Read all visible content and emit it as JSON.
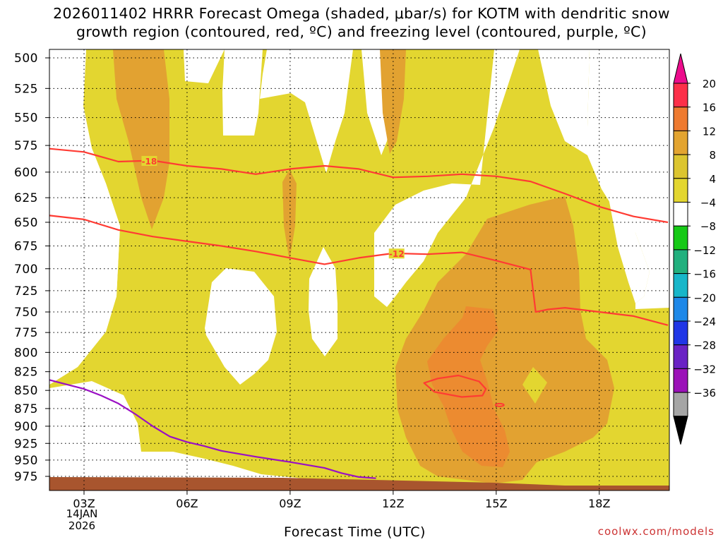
{
  "title": {
    "line1": "2026011402 HRRR Forecast Omega (shaded, μbar/s) for KOTM with dendritic snow",
    "line2": "growth region (contoured, red, ºC) and freezing level (contoured, purple, ºC)"
  },
  "credit": "coolwx.com/models",
  "colors": {
    "yellow": "#e3d630",
    "orange_light": "#e2a231",
    "orange_mid": "#ec8b30",
    "ground": "#a8552e",
    "red_contour": "#ff3b33",
    "purple_contour": "#9a0fc4"
  },
  "chart_data": {
    "type": "heatmap",
    "title": "2026011402 HRRR Forecast Omega (shaded, μbar/s) for KOTM with dendritic snow growth region (contoured, red, ºC) and freezing level (contoured, purple, ºC)",
    "xlabel": "Forecast Time (UTC)",
    "ylabel": "",
    "x_ticks": [
      "03Z",
      "06Z",
      "09Z",
      "12Z",
      "15Z",
      "18Z"
    ],
    "x_tick_hours": [
      3,
      6,
      9,
      12,
      15,
      18
    ],
    "date_label": [
      "14JAN",
      "2026"
    ],
    "xlim_hours": [
      2,
      20
    ],
    "y_ticks": [
      500,
      525,
      550,
      575,
      600,
      625,
      650,
      675,
      700,
      725,
      750,
      775,
      800,
      825,
      850,
      875,
      900,
      925,
      950,
      975
    ],
    "ylim_hpa": [
      500,
      975
    ],
    "y_log_scale": true,
    "grid": true,
    "colorbar": {
      "labels": [
        "20",
        "16",
        "12",
        "8",
        "4",
        "−4",
        "−8",
        "−12",
        "−16",
        "−20",
        "−24",
        "−28",
        "−32",
        "−36"
      ],
      "bins": [
        {
          "range": "16 to 20",
          "color": "#fc2f49"
        },
        {
          "range": "12 to 16",
          "color": "#ee7a30"
        },
        {
          "range": "8 to 12",
          "color": "#e3a430"
        },
        {
          "range": "4 to 8",
          "color": "#dcc530"
        },
        {
          "range": "0 to 4",
          "color": "#e3d630"
        },
        {
          "range": "-4 to 4",
          "color": "#ffffff"
        },
        {
          "range": "-8 to -4",
          "color": "#16c916"
        },
        {
          "range": "-12 to -8",
          "color": "#22b07e"
        },
        {
          "range": "-16 to -12",
          "color": "#18b6c9"
        },
        {
          "range": "-20 to -16",
          "color": "#1e88e8"
        },
        {
          "range": "-24 to -20",
          "color": "#2036e6"
        },
        {
          "range": "-28 to -24",
          "color": "#6a22c4"
        },
        {
          "range": "-32 to -28",
          "color": "#9b12b8"
        },
        {
          "range": "-36 to -32",
          "color": "#a5a5a5"
        }
      ],
      "top_extension_color": "#ec0c8c",
      "bottom_extension_color": "#000000"
    },
    "contour_labels": [
      "-18",
      "-12"
    ],
    "series": [
      {
        "name": "-18",
        "color": "#ff3b33",
        "x_hours": [
          2.0,
          3.0,
          4.0,
          5.0,
          6.0,
          7.0,
          8.0,
          9.0,
          10.0,
          11.0,
          12.0,
          13.0,
          14.0,
          15.0,
          16.0,
          17.0,
          18.0,
          19.0,
          20.0
        ],
        "y_hpa": [
          578,
          581,
          590,
          589,
          594,
          597,
          602,
          597,
          594,
          597,
          605,
          604,
          602,
          604,
          609,
          621,
          634,
          644,
          650
        ]
      },
      {
        "name": "-12",
        "color": "#ff3b33",
        "x_hours": [
          2.0,
          3.0,
          4.0,
          5.0,
          6.0,
          7.0,
          8.0,
          9.0,
          10.0,
          11.0,
          12.0,
          13.0,
          14.0,
          15.0,
          16.0,
          16.15,
          16.5,
          17.0,
          18.0,
          19.0,
          20.0
        ],
        "y_hpa": [
          643,
          647,
          658,
          665,
          670,
          675,
          681,
          688,
          695,
          688,
          683,
          684,
          682,
          691,
          701,
          750,
          747,
          745,
          750,
          755,
          766
        ]
      },
      {
        "name": "-12 (closed)",
        "color": "#ff3b33",
        "x_hours": [
          12.9,
          13.3,
          13.9,
          14.5,
          14.7,
          14.6,
          14.0,
          13.2,
          12.9
        ],
        "y_hpa": [
          840,
          834,
          830,
          838,
          848,
          857,
          859,
          852,
          840
        ]
      },
      {
        "name": "0",
        "color": "#9a0fc4",
        "x_hours": [
          2.0,
          2.5,
          3.0,
          3.5,
          4.0,
          4.5,
          5.0,
          5.5,
          6.0,
          6.5,
          7.0,
          8.0,
          9.0,
          10.0,
          10.5,
          11.0,
          11.5
        ],
        "y_hpa": [
          836,
          842,
          848,
          857,
          868,
          883,
          900,
          915,
          923,
          929,
          936,
          945,
          953,
          962,
          970,
          976,
          978
        ]
      }
    ],
    "omega_regions": [
      {
        "bin": "0 to 4",
        "x_hours": [
          2,
          20
        ],
        "y_hpa": [
          500,
          975
        ]
      },
      {
        "bin": "4 to 8",
        "x_hours": [
          3.5,
          5.0
        ],
        "y_hpa": [
          500,
          650
        ]
      },
      {
        "bin": "8 to 12",
        "x_hours": [
          12.5,
          17.5
        ],
        "y_hpa": [
          645,
          975
        ]
      },
      {
        "bin": "12 to 16",
        "x_hours": [
          13.0,
          15.0
        ],
        "y_hpa": [
          760,
          960
        ]
      }
    ]
  }
}
